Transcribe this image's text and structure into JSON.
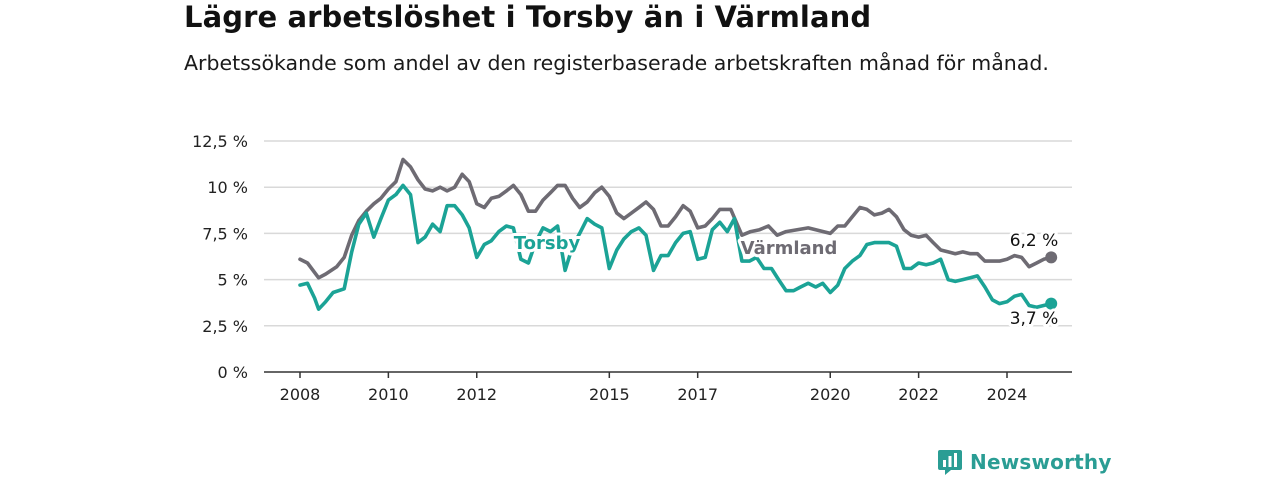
{
  "title": "Lägre arbetslöshet i Torsby än i Värmland",
  "subtitle": "Arbetssökande som andel av den registerbaserade arbetskraften månad för månad.",
  "brand": {
    "name": "Newsworthy",
    "color": "#2a9d94",
    "icon": "bar-chart-badge-icon"
  },
  "chart_data": {
    "type": "line",
    "title": "Lägre arbetslöshet i Torsby än i Värmland",
    "subtitle": "Arbetssökande som andel av den registerbaserade arbetskraften månad för månad.",
    "xlabel": "",
    "ylabel": "",
    "xlim": [
      2007.5,
      2025.9
    ],
    "ylim": [
      0,
      12.5
    ],
    "y_ticks": [
      0,
      2.5,
      5,
      7.5,
      10,
      12.5
    ],
    "y_tick_labels": [
      "0 %",
      "2,5 %",
      "5 %",
      "7,5 %",
      "10 %",
      "12,5 %"
    ],
    "x_ticks": [
      2008,
      2010,
      2012,
      2015,
      2017,
      2020,
      2022,
      2024
    ],
    "x_tick_labels": [
      "2008",
      "2010",
      "2012",
      "2015",
      "2017",
      "2020",
      "2022",
      "2024"
    ],
    "grid": true,
    "legend": "inline labels",
    "series": [
      {
        "name": "Värmland",
        "color": "#6e6b73",
        "end_label": "6,2 %",
        "last_value": 6.2,
        "points": [
          [
            2008.0,
            6.1
          ],
          [
            2008.17,
            5.9
          ],
          [
            2008.42,
            5.1
          ],
          [
            2008.58,
            5.3
          ],
          [
            2008.83,
            5.7
          ],
          [
            2009.0,
            6.2
          ],
          [
            2009.17,
            7.4
          ],
          [
            2009.33,
            8.2
          ],
          [
            2009.5,
            8.7
          ],
          [
            2009.67,
            9.1
          ],
          [
            2009.83,
            9.4
          ],
          [
            2010.0,
            9.9
          ],
          [
            2010.17,
            10.3
          ],
          [
            2010.33,
            11.5
          ],
          [
            2010.5,
            11.1
          ],
          [
            2010.67,
            10.4
          ],
          [
            2010.83,
            9.9
          ],
          [
            2011.0,
            9.8
          ],
          [
            2011.17,
            10.0
          ],
          [
            2011.33,
            9.8
          ],
          [
            2011.5,
            10.0
          ],
          [
            2011.67,
            10.7
          ],
          [
            2011.83,
            10.3
          ],
          [
            2012.0,
            9.1
          ],
          [
            2012.17,
            8.9
          ],
          [
            2012.33,
            9.4
          ],
          [
            2012.5,
            9.5
          ],
          [
            2012.67,
            9.8
          ],
          [
            2012.83,
            10.1
          ],
          [
            2013.0,
            9.6
          ],
          [
            2013.17,
            8.7
          ],
          [
            2013.33,
            8.7
          ],
          [
            2013.5,
            9.3
          ],
          [
            2013.67,
            9.7
          ],
          [
            2013.83,
            10.1
          ],
          [
            2014.0,
            10.1
          ],
          [
            2014.17,
            9.4
          ],
          [
            2014.33,
            8.9
          ],
          [
            2014.5,
            9.2
          ],
          [
            2014.67,
            9.7
          ],
          [
            2014.83,
            10.0
          ],
          [
            2015.0,
            9.5
          ],
          [
            2015.17,
            8.6
          ],
          [
            2015.33,
            8.3
          ],
          [
            2015.5,
            8.6
          ],
          [
            2015.67,
            8.9
          ],
          [
            2015.83,
            9.2
          ],
          [
            2016.0,
            8.8
          ],
          [
            2016.17,
            7.9
          ],
          [
            2016.33,
            7.9
          ],
          [
            2016.5,
            8.4
          ],
          [
            2016.67,
            9.0
          ],
          [
            2016.83,
            8.7
          ],
          [
            2017.0,
            7.8
          ],
          [
            2017.17,
            7.9
          ],
          [
            2017.33,
            8.3
          ],
          [
            2017.5,
            8.8
          ],
          [
            2017.75,
            8.8
          ],
          [
            2018.0,
            7.4
          ],
          [
            2018.2,
            7.6
          ],
          [
            2018.4,
            7.7
          ],
          [
            2018.6,
            7.9
          ],
          [
            2018.8,
            7.4
          ],
          [
            2019.0,
            7.6
          ],
          [
            2019.5,
            7.8
          ],
          [
            2020.0,
            7.5
          ],
          [
            2020.17,
            7.9
          ],
          [
            2020.33,
            7.9
          ],
          [
            2020.5,
            8.4
          ],
          [
            2020.67,
            8.9
          ],
          [
            2020.83,
            8.8
          ],
          [
            2021.0,
            8.5
          ],
          [
            2021.17,
            8.6
          ],
          [
            2021.33,
            8.8
          ],
          [
            2021.5,
            8.4
          ],
          [
            2021.67,
            7.7
          ],
          [
            2021.83,
            7.4
          ],
          [
            2022.0,
            7.3
          ],
          [
            2022.17,
            7.4
          ],
          [
            2022.33,
            7.0
          ],
          [
            2022.5,
            6.6
          ],
          [
            2022.67,
            6.5
          ],
          [
            2022.83,
            6.4
          ],
          [
            2023.0,
            6.5
          ],
          [
            2023.17,
            6.4
          ],
          [
            2023.33,
            6.4
          ],
          [
            2023.5,
            6.0
          ],
          [
            2023.67,
            6.0
          ],
          [
            2023.83,
            6.0
          ],
          [
            2024.0,
            6.1
          ],
          [
            2024.17,
            6.3
          ],
          [
            2024.33,
            6.2
          ],
          [
            2024.5,
            5.7
          ],
          [
            2024.67,
            5.9
          ],
          [
            2024.83,
            6.1
          ],
          [
            2025.0,
            6.2
          ]
        ]
      },
      {
        "name": "Torsby",
        "color": "#1ba396",
        "end_label": "3,7 %",
        "last_value": 3.7,
        "points": [
          [
            2008.0,
            4.7
          ],
          [
            2008.17,
            4.8
          ],
          [
            2008.33,
            4.0
          ],
          [
            2008.42,
            3.4
          ],
          [
            2008.58,
            3.8
          ],
          [
            2008.75,
            4.3
          ],
          [
            2009.0,
            4.5
          ],
          [
            2009.17,
            6.5
          ],
          [
            2009.33,
            8.0
          ],
          [
            2009.5,
            8.6
          ],
          [
            2009.67,
            7.3
          ],
          [
            2009.83,
            8.3
          ],
          [
            2010.0,
            9.3
          ],
          [
            2010.17,
            9.6
          ],
          [
            2010.33,
            10.1
          ],
          [
            2010.5,
            9.6
          ],
          [
            2010.67,
            7.0
          ],
          [
            2010.83,
            7.3
          ],
          [
            2011.0,
            8.0
          ],
          [
            2011.17,
            7.6
          ],
          [
            2011.33,
            9.0
          ],
          [
            2011.5,
            9.0
          ],
          [
            2011.67,
            8.5
          ],
          [
            2011.83,
            7.8
          ],
          [
            2012.0,
            6.2
          ],
          [
            2012.17,
            6.9
          ],
          [
            2012.33,
            7.1
          ],
          [
            2012.5,
            7.6
          ],
          [
            2012.67,
            7.9
          ],
          [
            2012.83,
            7.8
          ],
          [
            2013.0,
            6.1
          ],
          [
            2013.17,
            5.9
          ],
          [
            2013.33,
            7.0
          ],
          [
            2013.5,
            7.8
          ],
          [
            2013.67,
            7.6
          ],
          [
            2013.83,
            7.9
          ],
          [
            2014.0,
            5.5
          ],
          [
            2014.17,
            6.8
          ],
          [
            2014.33,
            7.5
          ],
          [
            2014.5,
            8.3
          ],
          [
            2014.67,
            8.0
          ],
          [
            2014.83,
            7.8
          ],
          [
            2015.0,
            5.6
          ],
          [
            2015.17,
            6.6
          ],
          [
            2015.33,
            7.2
          ],
          [
            2015.5,
            7.6
          ],
          [
            2015.67,
            7.8
          ],
          [
            2015.83,
            7.4
          ],
          [
            2016.0,
            5.5
          ],
          [
            2016.17,
            6.3
          ],
          [
            2016.33,
            6.3
          ],
          [
            2016.5,
            7.0
          ],
          [
            2016.67,
            7.5
          ],
          [
            2016.83,
            7.6
          ],
          [
            2017.0,
            6.1
          ],
          [
            2017.17,
            6.2
          ],
          [
            2017.33,
            7.7
          ],
          [
            2017.5,
            8.1
          ],
          [
            2017.67,
            7.6
          ],
          [
            2017.83,
            8.3
          ],
          [
            2018.0,
            6.0
          ],
          [
            2018.17,
            6.0
          ],
          [
            2018.33,
            6.2
          ],
          [
            2018.5,
            5.6
          ],
          [
            2018.67,
            5.6
          ],
          [
            2018.83,
            5.0
          ],
          [
            2019.0,
            4.4
          ],
          [
            2019.17,
            4.4
          ],
          [
            2019.33,
            4.6
          ],
          [
            2019.5,
            4.8
          ],
          [
            2019.67,
            4.6
          ],
          [
            2019.83,
            4.8
          ],
          [
            2020.0,
            4.3
          ],
          [
            2020.17,
            4.7
          ],
          [
            2020.33,
            5.6
          ],
          [
            2020.5,
            6.0
          ],
          [
            2020.67,
            6.3
          ],
          [
            2020.83,
            6.9
          ],
          [
            2021.0,
            7.0
          ],
          [
            2021.17,
            7.0
          ],
          [
            2021.33,
            7.0
          ],
          [
            2021.5,
            6.8
          ],
          [
            2021.67,
            5.6
          ],
          [
            2021.83,
            5.6
          ],
          [
            2022.0,
            5.9
          ],
          [
            2022.17,
            5.8
          ],
          [
            2022.33,
            5.9
          ],
          [
            2022.5,
            6.1
          ],
          [
            2022.67,
            5.0
          ],
          [
            2022.83,
            4.9
          ],
          [
            2023.0,
            5.0
          ],
          [
            2023.17,
            5.1
          ],
          [
            2023.33,
            5.2
          ],
          [
            2023.5,
            4.6
          ],
          [
            2023.67,
            3.9
          ],
          [
            2023.83,
            3.7
          ],
          [
            2024.0,
            3.8
          ],
          [
            2024.17,
            4.1
          ],
          [
            2024.33,
            4.2
          ],
          [
            2024.5,
            3.6
          ],
          [
            2024.67,
            3.5
          ],
          [
            2025.0,
            3.7
          ]
        ]
      }
    ]
  }
}
